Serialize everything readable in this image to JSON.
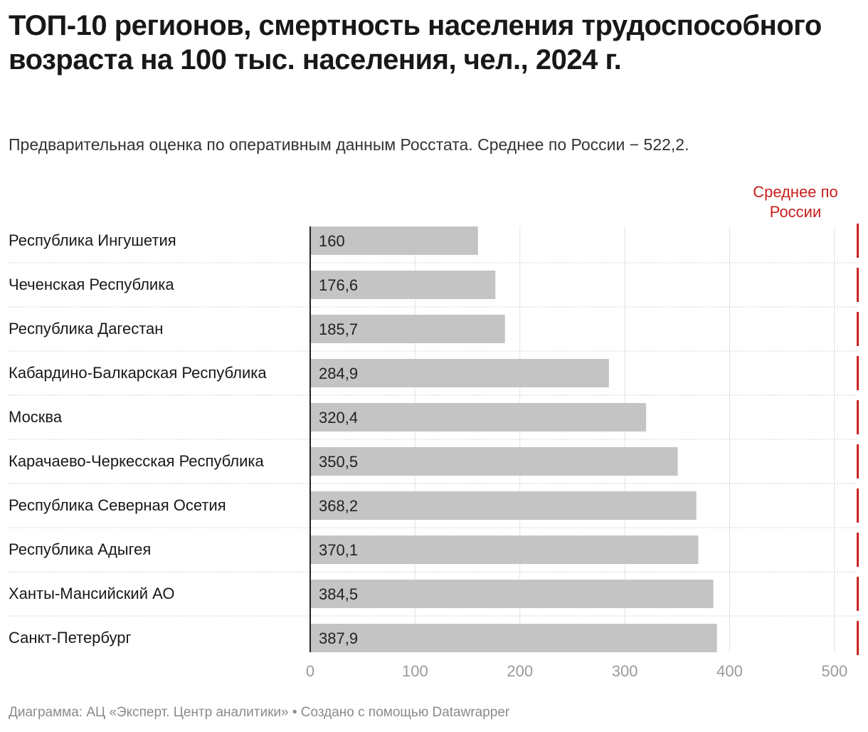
{
  "chart_data": {
    "type": "bar",
    "orientation": "horizontal",
    "title": "ТОП-10 регионов, смертность населения трудоспособного возраста на 100 тыс. населения, чел., 2024 г.",
    "subtitle": "Предварительная оценка по оперативным данным Росстата. Среднее по России − 522,2.",
    "categories": [
      "Республика Ингушетия",
      "Чеченская Республика",
      "Республика Дагестан",
      "Кабардино-Балкарская Республика",
      "Москва",
      "Карачаево-Черкесская Республика",
      "Республика Северная Осетия",
      "Республика Адыгея",
      "Ханты-Мансийский АО",
      "Санкт-Петербург"
    ],
    "values": [
      160,
      176.6,
      185.7,
      284.9,
      320.4,
      350.5,
      368.2,
      370.1,
      384.5,
      387.9
    ],
    "value_labels": [
      "160",
      "176,6",
      "185,7",
      "284,9",
      "320,4",
      "350,5",
      "368,2",
      "370,1",
      "384,5",
      "387,9"
    ],
    "x_ticks": [
      0,
      100,
      200,
      300,
      400,
      500
    ],
    "xlim": [
      0,
      522.2
    ],
    "grid": true,
    "reference_line": {
      "label": "Среднее по России",
      "value": 522.2,
      "color": "#c71e1d"
    },
    "bar_color": "#c4c4c4"
  },
  "footer": "Диаграмма: АЦ «Эксперт. Центр аналитики» • Создано с помощью Datawrapper"
}
